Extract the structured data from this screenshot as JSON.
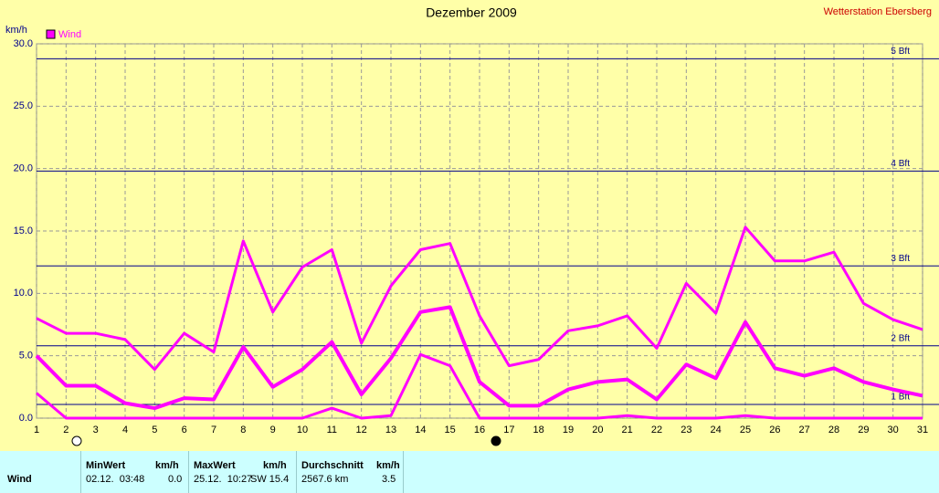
{
  "chart_data": {
    "type": "line",
    "title": "Dezember 2009",
    "station": "Wetterstation Ebersberg",
    "y_label": "km/h",
    "legend": "Wind",
    "legend_position": "top-left",
    "legend_color": "#ff00ff",
    "grid": true,
    "x": [
      1,
      2,
      3,
      4,
      5,
      6,
      7,
      8,
      9,
      10,
      11,
      12,
      13,
      14,
      15,
      16,
      17,
      18,
      19,
      20,
      21,
      22,
      23,
      24,
      25,
      26,
      27,
      28,
      29,
      30,
      31
    ],
    "xlim": [
      1,
      31
    ],
    "xticks": [
      1,
      2,
      3,
      4,
      5,
      6,
      7,
      8,
      9,
      10,
      11,
      12,
      13,
      14,
      15,
      16,
      17,
      18,
      19,
      20,
      21,
      22,
      23,
      24,
      25,
      26,
      27,
      28,
      29,
      30,
      31
    ],
    "ylim": [
      0,
      30
    ],
    "yticks": [
      {
        "value": 0,
        "label": "0.0"
      },
      {
        "value": 5,
        "label": "5.0"
      },
      {
        "value": 10,
        "label": "10.0"
      },
      {
        "value": 15,
        "label": "15.0"
      },
      {
        "value": 20,
        "label": "20.0"
      },
      {
        "value": 25,
        "label": "25.0"
      },
      {
        "value": 30,
        "label": "30.0"
      }
    ],
    "reference_lines": [
      {
        "value": 1.1,
        "label": "1 Bft"
      },
      {
        "value": 5.8,
        "label": "2 Bft"
      },
      {
        "value": 12.2,
        "label": "3 Bft"
      },
      {
        "value": 19.8,
        "label": "4 Bft"
      },
      {
        "value": 28.8,
        "label": "5 Bft"
      }
    ],
    "reference_color": "#00008b",
    "series": [
      {
        "color": "#ff00ff",
        "values": [
          8.0,
          6.8,
          6.8,
          6.3,
          3.9,
          6.8,
          5.3,
          14.2,
          8.5,
          12.1,
          13.5,
          6.0,
          10.6,
          13.5,
          14.0,
          8.2,
          4.2,
          4.7,
          7.0,
          7.4,
          8.2,
          5.6,
          10.8,
          8.4,
          15.3,
          12.6,
          12.6,
          13.3,
          9.2,
          7.9,
          7.1
        ]
      },
      {
        "color": "#ff00ff",
        "values": [
          5.0,
          2.6,
          2.6,
          1.2,
          0.8,
          1.6,
          1.5,
          5.7,
          2.5,
          3.9,
          6.1,
          1.9,
          4.8,
          8.5,
          8.9,
          2.9,
          1.0,
          1.0,
          2.3,
          2.9,
          3.1,
          1.5,
          4.3,
          3.2,
          7.7,
          4.0,
          3.4,
          4.0,
          2.9,
          2.3,
          1.8
        ]
      },
      {
        "color": "#ff00ff",
        "values": [
          2.0,
          0,
          0,
          0,
          0,
          0,
          0,
          0,
          0,
          0,
          0.8,
          0,
          0.2,
          5.1,
          4.2,
          0,
          0,
          0,
          0,
          0,
          0.2,
          0,
          0,
          0,
          0.2,
          0,
          0,
          0,
          0,
          0,
          0
        ]
      }
    ]
  },
  "table": {
    "header": [
      "MinWert",
      "km/h",
      "MaxWert",
      "km/h",
      "Durchschnitt",
      "km/h"
    ],
    "rows": [
      [
        "Wind",
        "02.12.  03:48",
        "0.0",
        "25.12.  10:27",
        "SW 15.4",
        "2567.6 km",
        "3.5"
      ]
    ]
  }
}
